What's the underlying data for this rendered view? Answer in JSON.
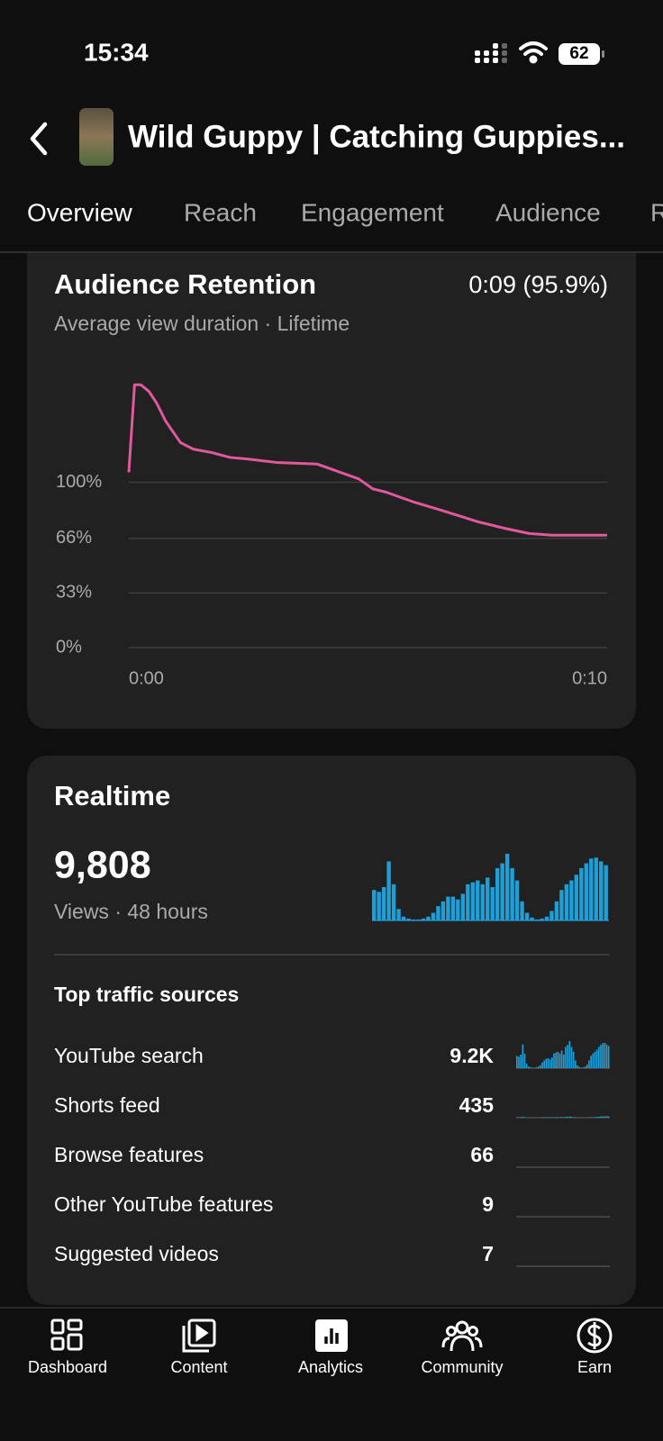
{
  "status_bar": {
    "time": "15:34",
    "battery": "62"
  },
  "header": {
    "title": "Wild Guppy | Catching Guppies..."
  },
  "tabs": [
    "Overview",
    "Reach",
    "Engagement",
    "Audience",
    "R"
  ],
  "chart_data": [
    {
      "type": "line",
      "title": "Audience Retention",
      "headline": "0:09 (95.9%)",
      "subtitle": "Average view duration · Lifetime",
      "x": [
        0,
        0.12,
        0.25,
        0.42,
        0.58,
        0.77,
        1.08,
        1.35,
        1.73,
        2.12,
        2.5,
        3.08,
        3.94,
        4.23,
        4.81,
        5.1,
        5.38,
        5.96,
        6.54,
        7.31,
        7.88,
        8.37,
        8.85,
        10
      ],
      "series": [
        {
          "color": "#e2589c",
          "values": [
            106,
            159,
            159,
            155,
            148,
            137,
            124,
            120,
            118,
            115,
            114,
            112,
            111,
            108,
            102,
            96,
            94,
            88,
            83,
            76,
            72,
            69,
            68,
            68
          ]
        }
      ],
      "xlim": [
        0,
        10
      ],
      "ylim": [
        0,
        170
      ],
      "xticks": [
        {
          "value": 0,
          "label": "0:00"
        },
        {
          "value": 10,
          "label": "0:10"
        }
      ],
      "yticks": [
        {
          "value": 0,
          "label": "0%"
        },
        {
          "value": 33,
          "label": "33%"
        },
        {
          "value": 66,
          "label": "66%"
        },
        {
          "value": 100,
          "label": "100%"
        }
      ],
      "grid": true
    },
    {
      "type": "bar",
      "title": "Realtime",
      "headline": "9,808",
      "caption": "Views · 48 hours",
      "color": "#1f9fd8",
      "values": [
        32,
        30,
        35,
        62,
        38,
        12,
        4,
        2,
        1,
        1,
        2,
        4,
        8,
        15,
        20,
        25,
        25,
        22,
        28,
        38,
        40,
        42,
        38,
        45,
        35,
        55,
        60,
        70,
        55,
        42,
        20,
        8,
        3,
        1,
        2,
        4,
        10,
        20,
        32,
        38,
        42,
        48,
        55,
        60,
        65,
        66,
        62,
        58
      ]
    }
  ],
  "traffic": {
    "title": "Top traffic sources",
    "color": "#1f9fd8",
    "sources": [
      {
        "name": "YouTube search",
        "value": "9.2K",
        "spark": [
          30,
          28,
          33,
          58,
          35,
          11,
          4,
          2,
          1,
          1,
          2,
          4,
          7,
          14,
          19,
          23,
          24,
          21,
          26,
          36,
          38,
          40,
          36,
          43,
          33,
          52,
          57,
          66,
          52,
          40,
          19,
          7,
          3,
          1,
          2,
          4,
          9,
          19,
          30,
          36,
          40,
          45,
          52,
          57,
          61,
          62,
          58,
          54
        ]
      },
      {
        "name": "Shorts feed",
        "value": "435",
        "spark": [
          1,
          1,
          1,
          2,
          1,
          0,
          0,
          0,
          0,
          0,
          0,
          0,
          0,
          1,
          1,
          1,
          1,
          1,
          1,
          1,
          1,
          1,
          1,
          2,
          1,
          2,
          2,
          3,
          2,
          1,
          1,
          0,
          0,
          0,
          0,
          0,
          0,
          1,
          1,
          1,
          1,
          2,
          2,
          3,
          3,
          3,
          4,
          3
        ]
      },
      {
        "name": "Browse features",
        "value": "66"
      },
      {
        "name": "Other YouTube features",
        "value": "9"
      },
      {
        "name": "Suggested videos",
        "value": "7"
      }
    ]
  },
  "nav": [
    "Dashboard",
    "Content",
    "Analytics",
    "Community",
    "Earn"
  ]
}
